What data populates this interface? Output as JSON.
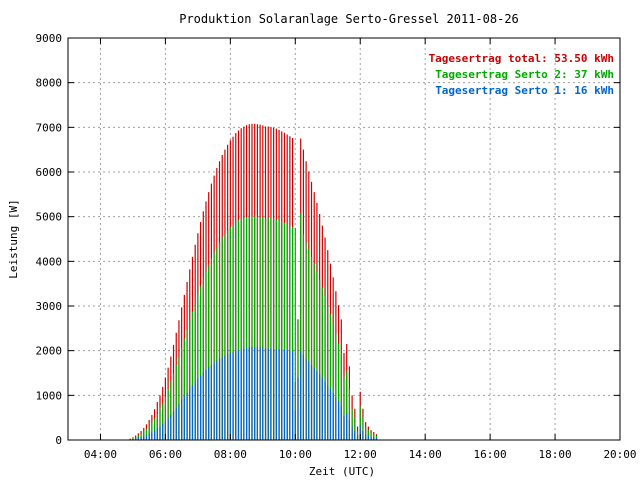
{
  "chart_data": {
    "type": "bar",
    "title": "Produktion Solaranlage Serto-Gressel 2011-08-26",
    "xlabel": "Zeit (UTC)",
    "ylabel": "Leistung [W]",
    "xlim": [
      "03:00",
      "20:00"
    ],
    "ylim": [
      0,
      9000
    ],
    "x_ticks": [
      "04:00",
      "06:00",
      "08:00",
      "10:00",
      "12:00",
      "14:00",
      "16:00",
      "18:00",
      "20:00"
    ],
    "y_ticks": [
      "0",
      "1000",
      "2000",
      "3000",
      "4000",
      "5000",
      "6000",
      "7000",
      "8000",
      "9000"
    ],
    "grid": true,
    "legend_position": "top-right",
    "interval_minutes": 5,
    "x_start": "04:55",
    "series": [
      {
        "name": "Tagesertrag total: 53.50 kWh",
        "color": "#cc0000",
        "values": [
          30,
          60,
          100,
          150,
          200,
          270,
          350,
          450,
          560,
          690,
          850,
          1000,
          1190,
          1400,
          1620,
          1870,
          2130,
          2400,
          2680,
          2970,
          3250,
          3540,
          3820,
          4100,
          4370,
          4630,
          4880,
          5120,
          5340,
          5550,
          5740,
          5920,
          6090,
          6240,
          6380,
          6500,
          6610,
          6710,
          6790,
          6870,
          6930,
          6980,
          7020,
          7050,
          7070,
          7080,
          7080,
          7070,
          7060,
          7040,
          7020,
          7020,
          7010,
          6990,
          6970,
          6940,
          6910,
          6880,
          6840,
          6800,
          6760,
          1300,
          2700,
          6750,
          6500,
          6240,
          6010,
          5780,
          5550,
          5310,
          5060,
          4800,
          4530,
          4250,
          3950,
          3640,
          3330,
          3020,
          2700,
          1950,
          2150,
          1650,
          1000,
          700,
          300,
          1080,
          700,
          400,
          300,
          220,
          180,
          130
        ]
      },
      {
        "name": "Tagesertrag Serto 2: 37 kWh",
        "color": "#00aa00",
        "values": [
          20,
          40,
          60,
          100,
          140,
          190,
          250,
          310,
          390,
          480,
          580,
          700,
          830,
          980,
          1140,
          1300,
          1480,
          1670,
          1870,
          2070,
          2270,
          2480,
          2680,
          2880,
          3070,
          3260,
          3440,
          3610,
          3770,
          3920,
          4060,
          4190,
          4310,
          4420,
          4520,
          4610,
          4690,
          4760,
          4820,
          4870,
          4920,
          4950,
          4980,
          4990,
          5000,
          5000,
          5000,
          4990,
          4980,
          4970,
          4960,
          4970,
          4960,
          4950,
          4930,
          4910,
          4880,
          4860,
          4830,
          4800,
          4770,
          4750,
          2700,
          5080,
          4600,
          4420,
          4260,
          4100,
          3940,
          3770,
          3590,
          3410,
          3220,
          3020,
          2810,
          2590,
          2370,
          2150,
          1930,
          1400,
          1550,
          1150,
          700,
          500,
          200,
          750,
          500,
          300,
          220,
          160,
          130,
          90
        ]
      },
      {
        "name": "Tagesertrag Serto 1: 16 kWh",
        "color": "#0066cc",
        "values": [
          10,
          20,
          40,
          50,
          60,
          80,
          100,
          140,
          170,
          210,
          270,
          300,
          360,
          420,
          480,
          570,
          650,
          730,
          810,
          900,
          980,
          1060,
          1140,
          1220,
          1300,
          1370,
          1440,
          1510,
          1570,
          1630,
          1680,
          1730,
          1780,
          1820,
          1860,
          1890,
          1920,
          1950,
          1970,
          1990,
          2010,
          2030,
          2040,
          2060,
          2070,
          2080,
          2080,
          2080,
          2080,
          2070,
          2060,
          2050,
          2050,
          2040,
          2040,
          2030,
          2030,
          2020,
          2010,
          2000,
          1990,
          650,
          1400,
          2000,
          1900,
          1820,
          1750,
          1680,
          1610,
          1540,
          1470,
          1390,
          1310,
          1230,
          1150,
          1050,
          960,
          870,
          770,
          550,
          600,
          450,
          300,
          200,
          100,
          320,
          200,
          120,
          90,
          60,
          50,
          40
        ]
      }
    ]
  }
}
